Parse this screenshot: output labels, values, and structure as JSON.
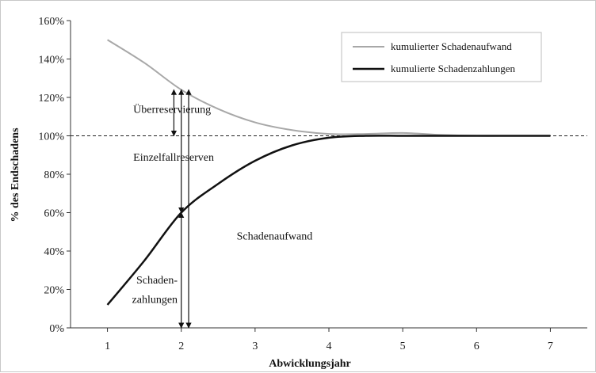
{
  "chart_data": {
    "type": "line",
    "title": "",
    "xlabel": "Abwicklungsjahr",
    "ylabel": "% des Endschadens",
    "x": [
      1,
      2,
      3,
      4,
      5,
      6,
      7
    ],
    "xlim": [
      0.5,
      7.5
    ],
    "ylim": [
      0,
      160
    ],
    "yticks": [
      "0%",
      "20%",
      "40%",
      "60%",
      "80%",
      "100%",
      "120%",
      "140%",
      "160%"
    ],
    "xticks": [
      "1",
      "2",
      "3",
      "4",
      "5",
      "6",
      "7"
    ],
    "legend_position": "top-right",
    "reference_line": {
      "y": 100,
      "style": "dashed"
    },
    "series": [
      {
        "name": "kumulierter Schadenaufwand",
        "color": "#a8a8a8",
        "x": [
          1,
          1.5,
          2,
          2.5,
          3,
          3.5,
          4,
          4.5,
          5,
          5.5,
          6,
          6.5,
          7
        ],
        "values": [
          150,
          138,
          124,
          114,
          107,
          103,
          101,
          101,
          101.5,
          100.5,
          100,
          100,
          100
        ]
      },
      {
        "name": "kumulierte Schadenzahlungen",
        "color": "#111111",
        "x": [
          1,
          1.5,
          2,
          2.5,
          3,
          3.5,
          4,
          4.5,
          5,
          5.5,
          6,
          6.5,
          7
        ],
        "values": [
          12,
          35,
          60,
          75,
          87,
          95,
          99,
          100,
          100,
          100,
          100,
          100,
          100
        ]
      }
    ],
    "annotations": [
      {
        "text": "Überreservierung",
        "x": 1.35,
        "y": 112
      },
      {
        "text": "Einzelfallreserven",
        "x": 1.35,
        "y": 87
      },
      {
        "text": "Schadenaufwand",
        "x": 2.75,
        "y": 46
      },
      {
        "text": "Schaden-",
        "x": 1.95,
        "y": 23
      },
      {
        "text": "zahlungen",
        "x": 1.95,
        "y": 13
      }
    ],
    "arrows": [
      {
        "x": 1.9,
        "y1": 100,
        "y2": 124
      },
      {
        "x": 2.0,
        "y1": 60,
        "y2": 124
      },
      {
        "x": 2.0,
        "y1": 0,
        "y2": 60
      },
      {
        "x": 2.1,
        "y1": 0,
        "y2": 124
      }
    ]
  }
}
